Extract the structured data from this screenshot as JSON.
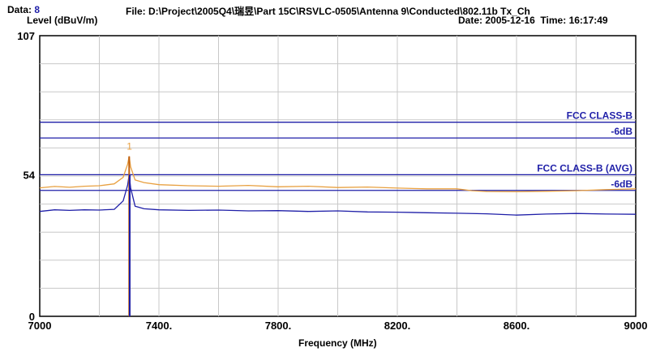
{
  "header": {
    "data_label": "Data:",
    "data_value": "8",
    "file_label": "File:",
    "file_path": "D:\\Project\\2005Q4\\瑞昱\\Part 15C\\RSVLC-0505\\Antenna 9\\Conducted\\802.11b Tx_Ch",
    "date_label": "Date:",
    "date_value": "2005-12-16",
    "time_label": "Time:",
    "time_value": "16:17:49"
  },
  "chart_data": {
    "type": "line",
    "xlabel": "Frequency (MHz)",
    "ylabel": "Level (dBuV/m)",
    "xlim": [
      7000,
      9000
    ],
    "ylim": [
      0,
      107
    ],
    "x_ticks": [
      {
        "value": 7000,
        "label": "7000"
      },
      {
        "value": 7400,
        "label": "7400."
      },
      {
        "value": 7800,
        "label": "7800."
      },
      {
        "value": 8200,
        "label": "8200."
      },
      {
        "value": 8600,
        "label": "8600."
      },
      {
        "value": 9000,
        "label": "9000"
      }
    ],
    "y_ticks": [
      {
        "value": 107,
        "label": "107"
      },
      {
        "value": 54,
        "label": "54"
      },
      {
        "value": 0,
        "label": "0"
      }
    ],
    "grid": true,
    "limit_lines": [
      {
        "name": "FCC CLASS-B",
        "value": 74,
        "color": "#1f1fa8"
      },
      {
        "name": "-6dB",
        "value": 68,
        "color": "#1f1fa8"
      },
      {
        "name": "FCC CLASS-B (AVG)",
        "value": 54,
        "color": "#1f1fa8"
      },
      {
        "name": "-6dB",
        "value": 48,
        "color": "#1f1fa8"
      }
    ],
    "marker": {
      "label": "1",
      "x": 7300,
      "y": 61
    },
    "series": [
      {
        "color": "#e8a040",
        "x": [
          7000,
          7050,
          7100,
          7150,
          7200,
          7250,
          7280,
          7295,
          7300,
          7305,
          7320,
          7350,
          7400,
          7500,
          7600,
          7700,
          7800,
          7900,
          8000,
          8100,
          8200,
          8300,
          8400,
          8450,
          8500,
          8600,
          8700,
          8800,
          8900,
          9000
        ],
        "values": [
          49,
          49.5,
          49.2,
          49.6,
          49.8,
          50.5,
          53,
          58,
          61,
          57,
          52,
          51,
          50.2,
          49.8,
          49.6,
          49.9,
          49.4,
          49.6,
          49.1,
          49.3,
          48.9,
          48.6,
          48.6,
          47.9,
          47.6,
          47.5,
          47.7,
          47.9,
          48.3,
          48.6
        ]
      },
      {
        "color": "#1f1fa8",
        "x": [
          7000,
          7050,
          7100,
          7150,
          7200,
          7250,
          7280,
          7295,
          7300,
          7305,
          7320,
          7350,
          7400,
          7500,
          7600,
          7700,
          7800,
          7900,
          8000,
          8100,
          8200,
          8300,
          8400,
          8500,
          8600,
          8700,
          8800,
          8900,
          9000
        ],
        "values": [
          40,
          40.6,
          40.4,
          40.6,
          40.5,
          40.8,
          44,
          50,
          54,
          49,
          42,
          41,
          40.6,
          40.4,
          40.5,
          40.2,
          40.3,
          40.0,
          40.2,
          39.8,
          39.7,
          39.5,
          39.3,
          39.1,
          38.6,
          39.0,
          39.2,
          39.0,
          38.9
        ]
      },
      {
        "color": "#c06010",
        "style": "spike",
        "x": [
          7300,
          7300
        ],
        "values": [
          0,
          61
        ]
      },
      {
        "color": "#1f1fa8",
        "style": "spike",
        "x": [
          7302,
          7302
        ],
        "values": [
          0,
          54
        ]
      }
    ]
  }
}
